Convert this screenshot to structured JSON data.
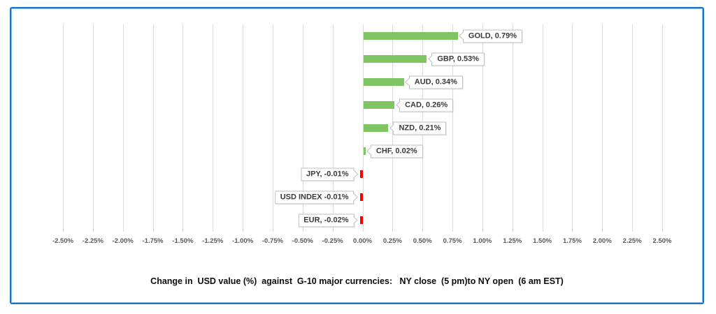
{
  "frame": {
    "border_color": "#1B75C6",
    "inner_border_color": "#85BCE8",
    "background": "#FFFFFF"
  },
  "chart_data": {
    "type": "bar",
    "orientation": "horizontal",
    "title": "Change in  USD value (%)  against  G-10 major currencies:   NY close  (5 pm)to NY open  (6 am EST)",
    "categories": [
      "GOLD",
      "GBP",
      "AUD",
      "CAD",
      "NZD",
      "CHF",
      "JPY",
      "USD INDEX",
      "EUR"
    ],
    "values": [
      0.79,
      0.53,
      0.34,
      0.26,
      0.21,
      0.02,
      -0.01,
      -0.01,
      -0.02
    ],
    "data_labels": [
      "GOLD, 0.79%",
      "GBP, 0.53%",
      "AUD, 0.34%",
      "CAD, 0.26%",
      "NZD, 0.21%",
      "CHF, 0.02%",
      "JPY, -0.01%",
      "USD INDEX -0.01%",
      "EUR, -0.02%"
    ],
    "xlim": [
      -2.5,
      2.5
    ],
    "tick_step": 0.25,
    "tick_labels": [
      "-2.50%",
      "-2.25%",
      "-2.00%",
      "-1.75%",
      "-1.50%",
      "-1.25%",
      "-1.00%",
      "-0.75%",
      "-0.50%",
      "-0.25%",
      "0.00%",
      "0.25%",
      "0.50%",
      "0.75%",
      "1.00%",
      "1.25%",
      "1.50%",
      "1.75%",
      "2.00%",
      "2.25%",
      "2.50%"
    ],
    "grid": true,
    "legend": "none",
    "positive_color": "#7FC563",
    "negative_color": "#FF0000",
    "gridline_color": "#DBDBDB",
    "axis_label_color": "#595959",
    "data_label_text_color": "#3A3A3A",
    "data_label_border_color": "#BFBFBF",
    "data_label_background": "#FFFFFF"
  }
}
